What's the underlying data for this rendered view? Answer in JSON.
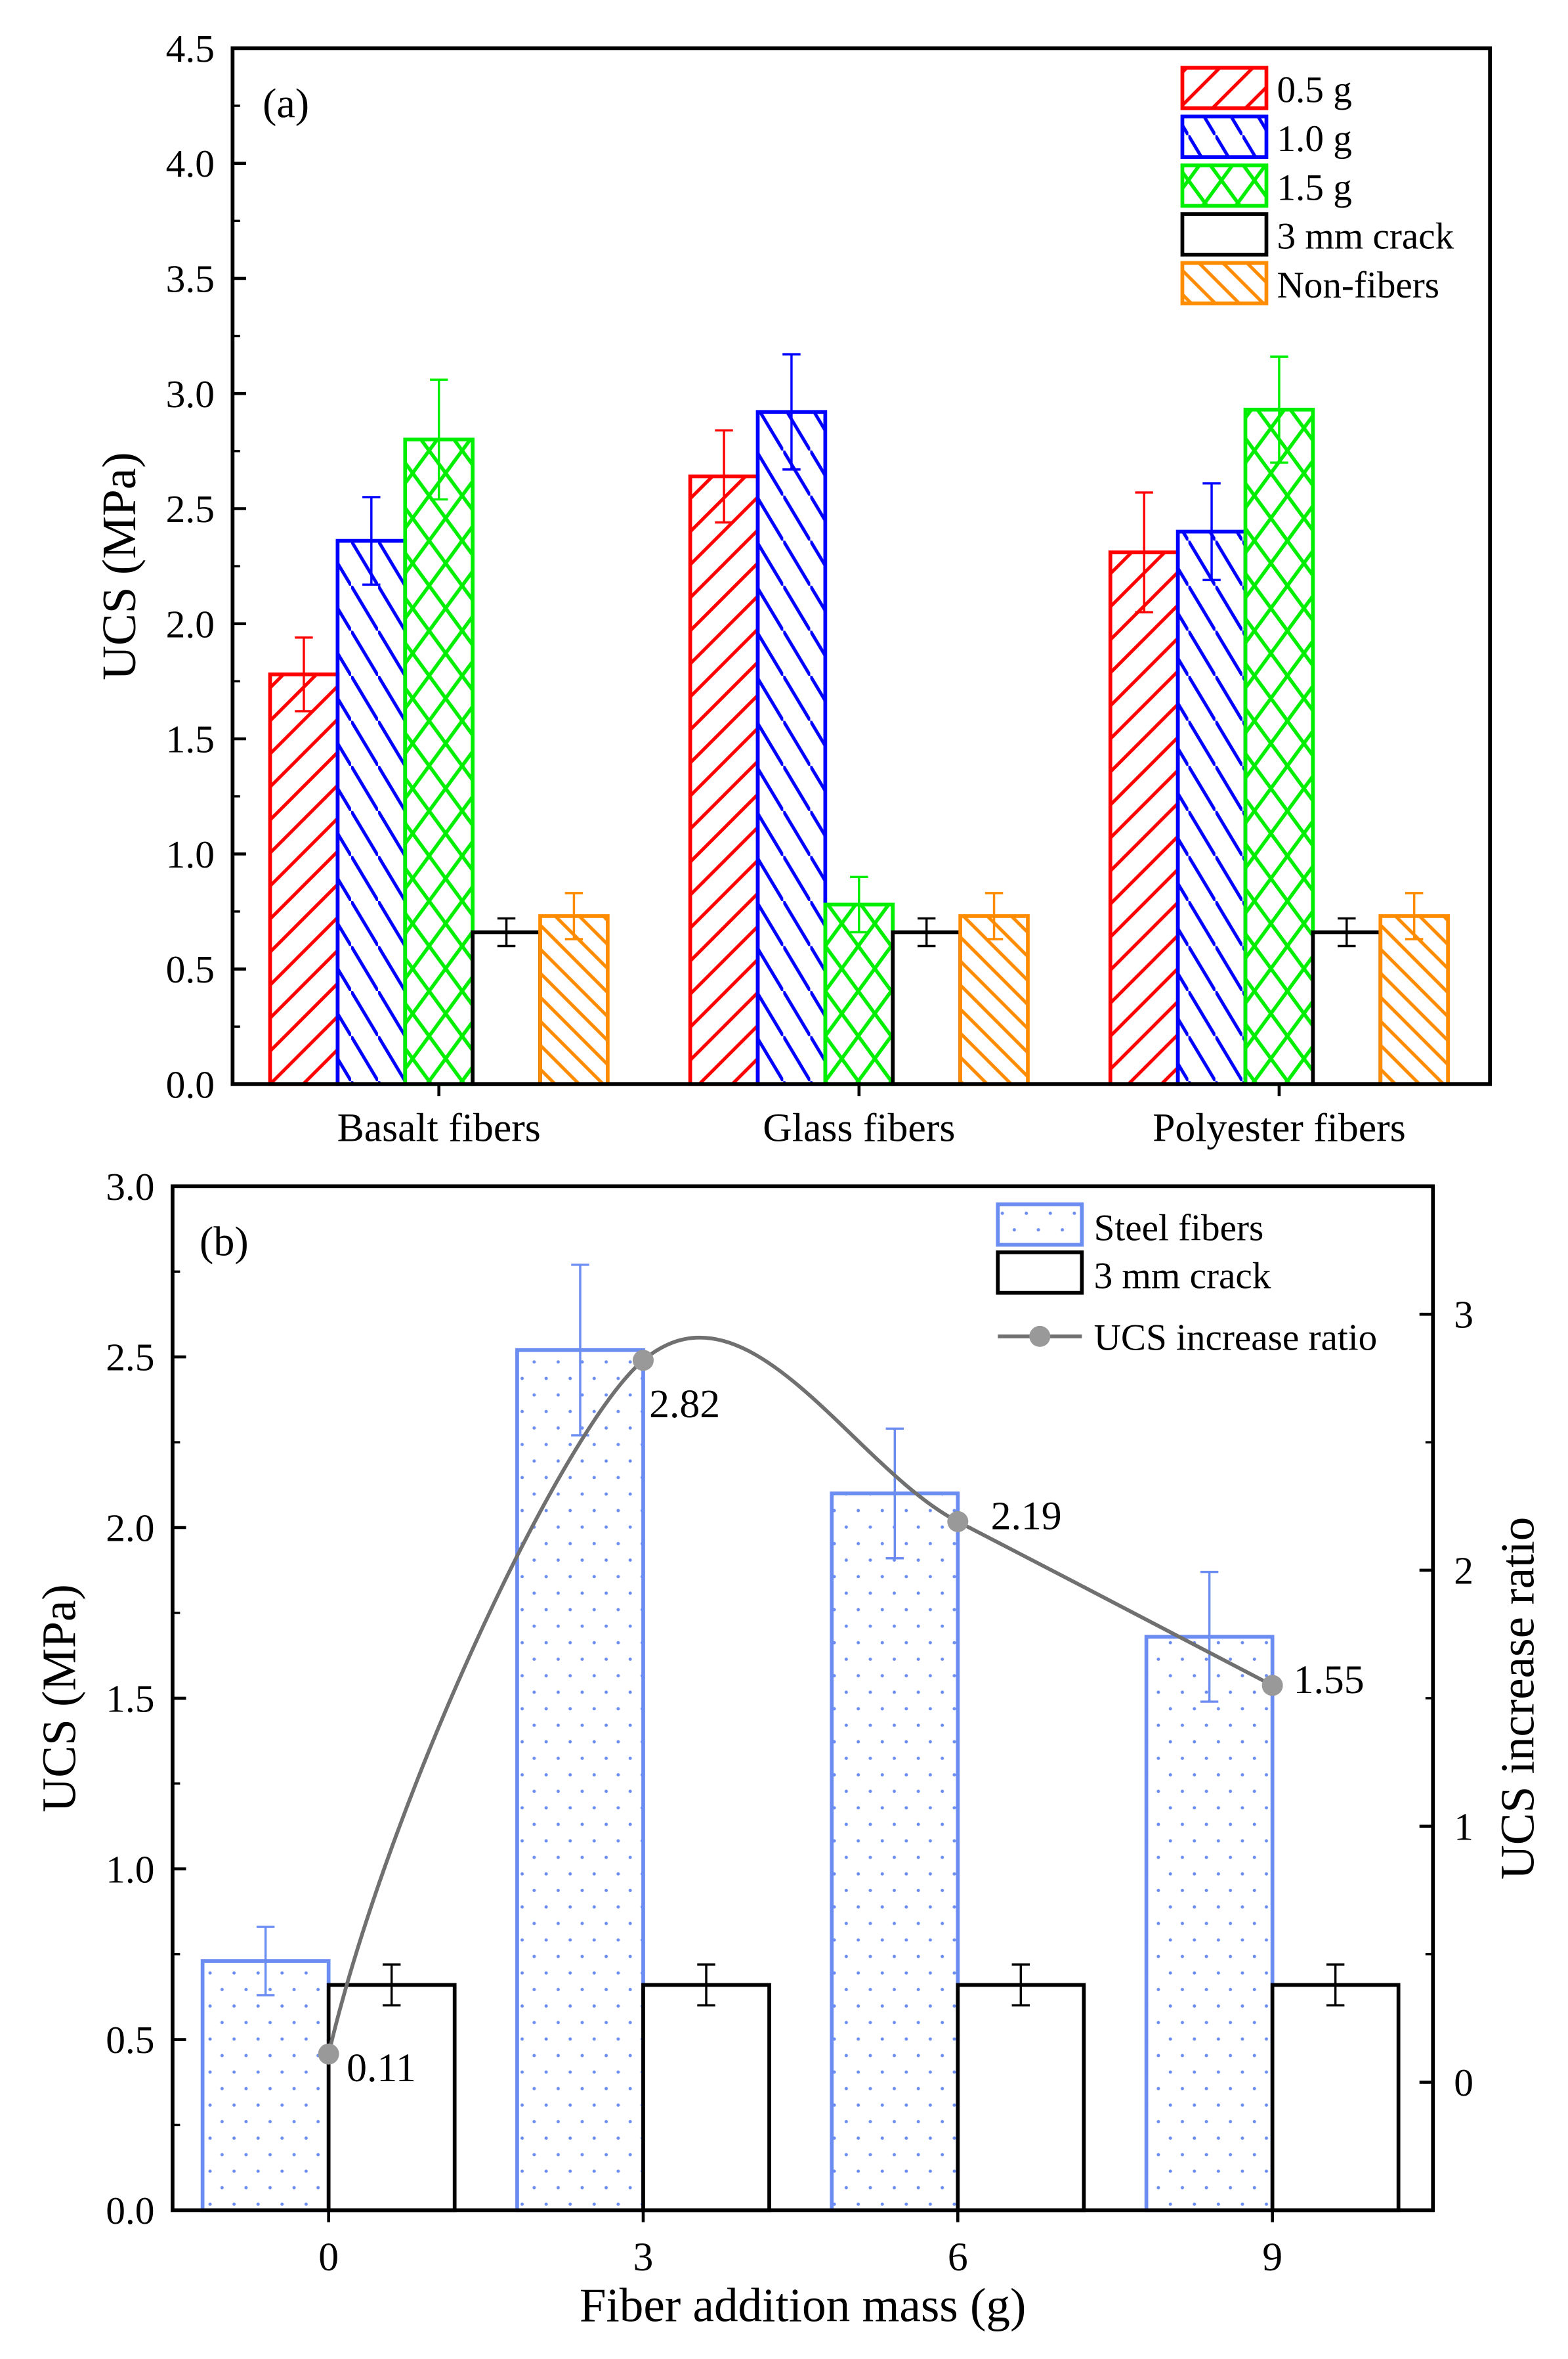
{
  "chart_data": [
    {
      "type": "bar",
      "panel_label": "(a)",
      "title": "",
      "xlabel": "",
      "ylabel": "UCS (MPa)",
      "ylim": [
        0,
        4.5
      ],
      "yticks": [
        "0.0",
        "0.5",
        "1.0",
        "1.5",
        "2.0",
        "2.5",
        "3.0",
        "3.5",
        "4.0",
        "4.5"
      ],
      "grid": false,
      "legend_position": "top-right",
      "categories": [
        "Basalt fibers",
        "Glass fibers",
        "Polyester fibers"
      ],
      "series": [
        {
          "name": "0.5 g",
          "color": "#ff0000",
          "pattern": "diag-right",
          "values": [
            1.78,
            2.64,
            2.31
          ],
          "errors": [
            0.16,
            0.2,
            0.26
          ]
        },
        {
          "name": "1.0 g",
          "color": "#0000ff",
          "pattern": "diag-left",
          "values": [
            2.36,
            2.92,
            2.4
          ],
          "errors": [
            0.19,
            0.25,
            0.21
          ]
        },
        {
          "name": "1.5 g",
          "color": "#00ee00",
          "pattern": "cross",
          "values": [
            2.8,
            0.78,
            2.93
          ],
          "errors": [
            0.26,
            0.12,
            0.23
          ]
        },
        {
          "name": "3 mm crack",
          "color": "#000000",
          "pattern": "none",
          "values": [
            0.66,
            0.66,
            0.66
          ],
          "errors": [
            0.06,
            0.06,
            0.06
          ]
        },
        {
          "name": "Non-fibers",
          "color": "#ff8c00",
          "pattern": "diag-left",
          "values": [
            0.73,
            0.73,
            0.73
          ],
          "errors": [
            0.1,
            0.1,
            0.1
          ]
        }
      ]
    },
    {
      "type": "bar",
      "panel_label": "(b)",
      "title": "",
      "xlabel": "Fiber addition mass (g)",
      "ylabel": "UCS (MPa)",
      "y2label": "UCS increase ratio",
      "ylim": [
        0,
        3.0
      ],
      "y2lim": [
        -0.5,
        3.5
      ],
      "yticks": [
        "0.0",
        "0.5",
        "1.0",
        "1.5",
        "2.0",
        "2.5",
        "3.0"
      ],
      "y2ticks": [
        "0",
        "1",
        "2",
        "3"
      ],
      "grid": false,
      "legend_position": "top-right",
      "categories": [
        "0",
        "3",
        "6",
        "9"
      ],
      "x": [
        0,
        3,
        6,
        9
      ],
      "series": [
        {
          "name": "Steel fibers",
          "color": "#6b8cf0",
          "pattern": "dots",
          "values": [
            0.73,
            2.52,
            2.1,
            1.68
          ],
          "errors": [
            0.1,
            0.25,
            0.19,
            0.19
          ]
        },
        {
          "name": "3 mm crack",
          "color": "#000000",
          "pattern": "none",
          "values": [
            0.66,
            0.66,
            0.66,
            0.66
          ],
          "errors": [
            0.06,
            0.06,
            0.06,
            0.06
          ]
        },
        {
          "name": "UCS increase ratio",
          "type": "line",
          "axis": "right",
          "color": "#707070",
          "values": [
            0.11,
            2.82,
            2.19,
            1.55
          ],
          "labels": [
            "0.11",
            "2.82",
            "2.19",
            "1.55"
          ]
        }
      ]
    }
  ]
}
